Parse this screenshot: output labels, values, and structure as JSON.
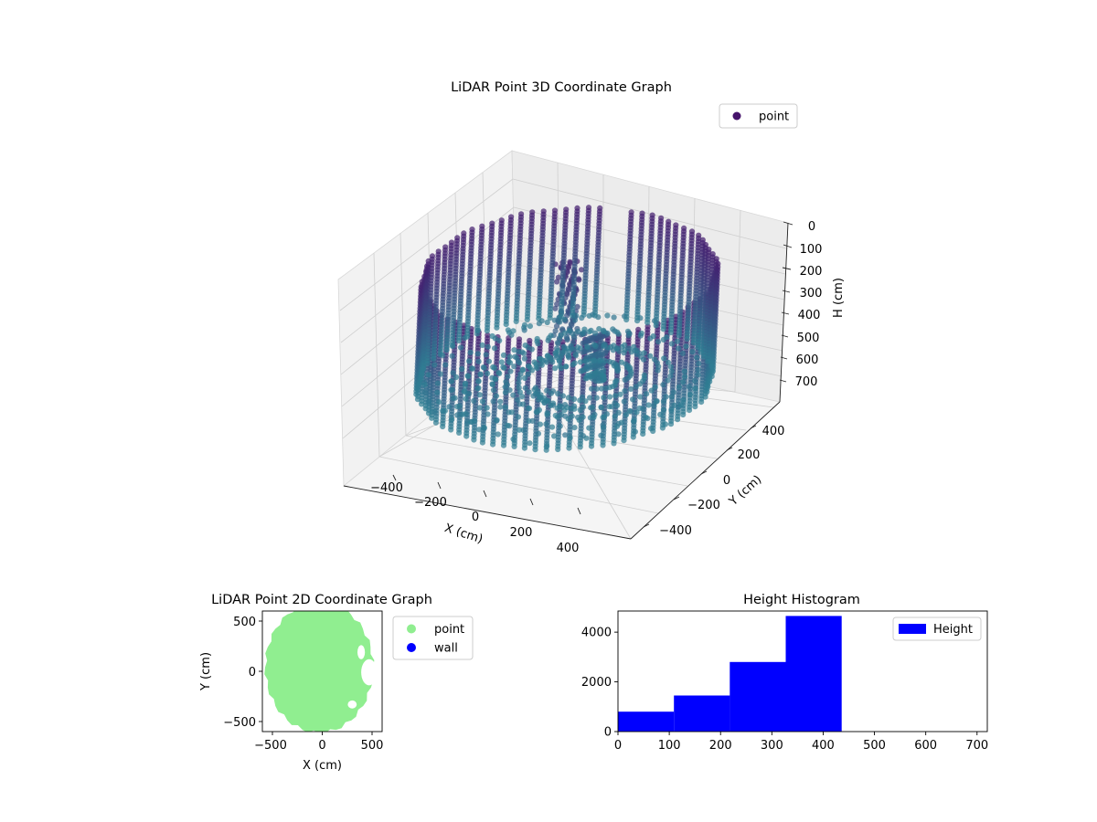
{
  "colors": {
    "scatter_top": "#45136b",
    "scatter_bottom": "#2f7d93",
    "pane": "#f2f2f2",
    "grid": "#cccccc",
    "point2d": "#90ee90",
    "wall": "#0000ff",
    "hist": "#0000ff"
  },
  "chart_data": [
    {
      "type": "scatter3d",
      "title": "LiDAR Point 3D Coordinate Graph",
      "xlabel": "X (cm)",
      "ylabel": "Y (cm)",
      "zlabel": "H (cm)",
      "xlim": [
        -550,
        550
      ],
      "ylim": [
        -550,
        550
      ],
      "zlim": [
        0,
        700
      ],
      "z_inverted": true,
      "xticks": [
        "−400",
        "−200",
        "0",
        "200",
        "400"
      ],
      "yticks": [
        "−400",
        "−200",
        "0",
        "200",
        "400"
      ],
      "zticks": [
        "0",
        "100",
        "200",
        "300",
        "400",
        "500",
        "600",
        "700"
      ],
      "legend": {
        "position": "top-right",
        "entries": [
          "point"
        ]
      },
      "wall_radius_cm": 500,
      "wall_height_range_cm": [
        40,
        460
      ],
      "objects": [
        {
          "name": "tall structure",
          "x": -60,
          "y": 120,
          "h_top": 60,
          "h_bottom": 460
        },
        {
          "name": "center clutter",
          "x": 80,
          "y": 60,
          "h_top": 280,
          "h_bottom": 460
        }
      ]
    },
    {
      "type": "scatter",
      "title": "LiDAR Point 2D Coordinate Graph",
      "xlabel": "X (cm)",
      "ylabel": "Y (cm)",
      "xlim": [
        -600,
        600
      ],
      "ylim": [
        -600,
        600
      ],
      "xticks": [
        "−500",
        "0",
        "500"
      ],
      "yticks": [
        "−500",
        "0",
        "500"
      ],
      "legend": {
        "position": "right-outside",
        "entries": [
          "point",
          "wall"
        ]
      },
      "series": [
        {
          "name": "point",
          "shape": "disk",
          "cx": -30,
          "cy": 40,
          "rx": 540,
          "ry": 650
        },
        {
          "name": "wall",
          "points": []
        }
      ]
    },
    {
      "type": "bar",
      "title": "Height Histogram",
      "legend": {
        "position": "top-right",
        "entries": [
          "Height"
        ]
      },
      "xlim": [
        0,
        720
      ],
      "ylim": [
        0,
        4850
      ],
      "xticks": [
        "0",
        "100",
        "200",
        "300",
        "400",
        "500",
        "600",
        "700"
      ],
      "yticks": [
        "0",
        "2000",
        "4000"
      ],
      "bins": [
        {
          "from": 0,
          "to": 109,
          "count": 800
        },
        {
          "from": 109,
          "to": 218,
          "count": 1450
        },
        {
          "from": 218,
          "to": 327,
          "count": 2800
        },
        {
          "from": 327,
          "to": 436,
          "count": 4650
        },
        {
          "from": 436,
          "to": 545,
          "count": 0
        },
        {
          "from": 545,
          "to": 654,
          "count": 0
        }
      ]
    }
  ]
}
